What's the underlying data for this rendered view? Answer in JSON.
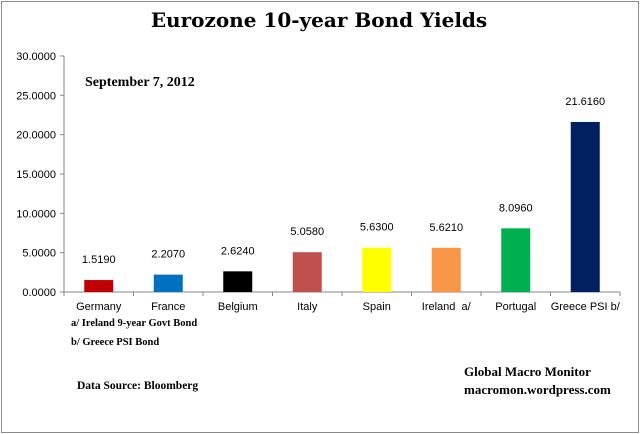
{
  "chart_data": {
    "type": "bar",
    "title": "Eurozone 10-year Bond Yields",
    "subtitle": "September 7, 2012",
    "categories": [
      "Germany",
      "France",
      "Belgium",
      "Italy",
      "Spain",
      "Ireland  a/",
      "Portugal",
      "Greece PSI b/"
    ],
    "values": [
      1.519,
      2.207,
      2.624,
      5.058,
      5.63,
      5.621,
      8.096,
      21.616
    ],
    "data_labels": [
      "1.5190",
      "2.2070",
      "2.6240",
      "5.0580",
      "5.6300",
      "5.6210",
      "8.0960",
      "21.6160"
    ],
    "colors": [
      "#c00000",
      "#0070c0",
      "#000000",
      "#c0504d",
      "#ffff00",
      "#f79646",
      "#00b050",
      "#002060"
    ],
    "ylim": [
      0,
      30
    ],
    "yticks": [
      "0.0000",
      "5.0000",
      "10.0000",
      "15.0000",
      "20.0000",
      "25.0000",
      "30.0000"
    ],
    "xlabel": "",
    "ylabel": "",
    "grid": false,
    "legend": "none"
  },
  "footnotes": [
    "a/  Ireland 9-year Govt Bond",
    "b/  Greece PSI Bond"
  ],
  "source": "Data Source:  Bloomberg",
  "credit": {
    "name": "Global Macro Monitor",
    "url": "macromon.wordpress.com"
  }
}
